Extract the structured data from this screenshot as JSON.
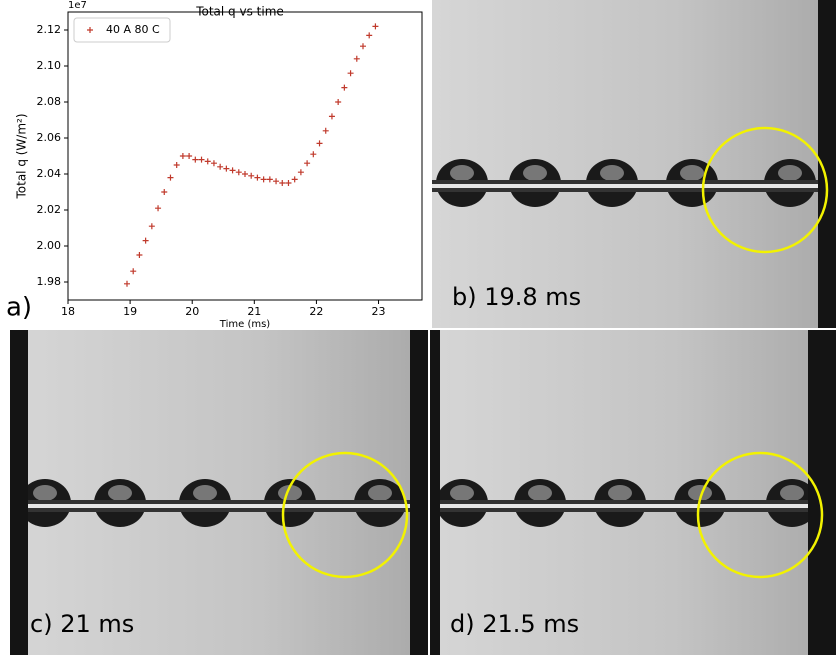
{
  "chart_data": {
    "type": "scatter",
    "title": "Total q vs time",
    "x_label": "Time (ms)",
    "y_label": "Total q  (W/m²)",
    "y_offset_label": "1e7",
    "figure_label": "a)",
    "series": [
      {
        "name": "40 A 80 C",
        "color": "#c0392b",
        "marker": "+",
        "x": [
          18.95,
          19.05,
          19.15,
          19.25,
          19.35,
          19.45,
          19.55,
          19.65,
          19.75,
          19.85,
          19.95,
          20.05,
          20.15,
          20.25,
          20.35,
          20.45,
          20.55,
          20.65,
          20.75,
          20.85,
          20.95,
          21.05,
          21.15,
          21.25,
          21.35,
          21.45,
          21.55,
          21.65,
          21.75,
          21.85,
          21.95,
          22.05,
          22.15,
          22.25,
          22.35,
          22.45,
          22.55,
          22.65,
          22.75,
          22.85,
          22.95
        ],
        "values": [
          1.979,
          1.986,
          1.995,
          2.003,
          2.011,
          2.021,
          2.03,
          2.038,
          2.045,
          2.05,
          2.05,
          2.048,
          2.048,
          2.047,
          2.046,
          2.044,
          2.043,
          2.042,
          2.041,
          2.04,
          2.039,
          2.038,
          2.037,
          2.037,
          2.036,
          2.035,
          2.035,
          2.037,
          2.041,
          2.046,
          2.051,
          2.057,
          2.064,
          2.072,
          2.08,
          2.088,
          2.096,
          2.104,
          2.111,
          2.117,
          2.122
        ]
      }
    ],
    "xlim": [
      18,
      23.7
    ],
    "ylim": [
      1.97,
      2.13
    ],
    "xticks": [
      18,
      19,
      20,
      21,
      22,
      23
    ],
    "yticks": [
      1.98,
      {
        "value": 2,
        "label": "2.00"
      },
      2.02,
      2.04,
      2.06,
      2.08,
      {
        "value": 2.1,
        "label": "2.10"
      },
      2.12
    ],
    "legend": "upper left"
  },
  "panels": [
    {
      "label": "b) 19.8 ms"
    },
    {
      "label": "c) 21 ms"
    },
    {
      "label": "d) 21.5 ms"
    }
  ]
}
